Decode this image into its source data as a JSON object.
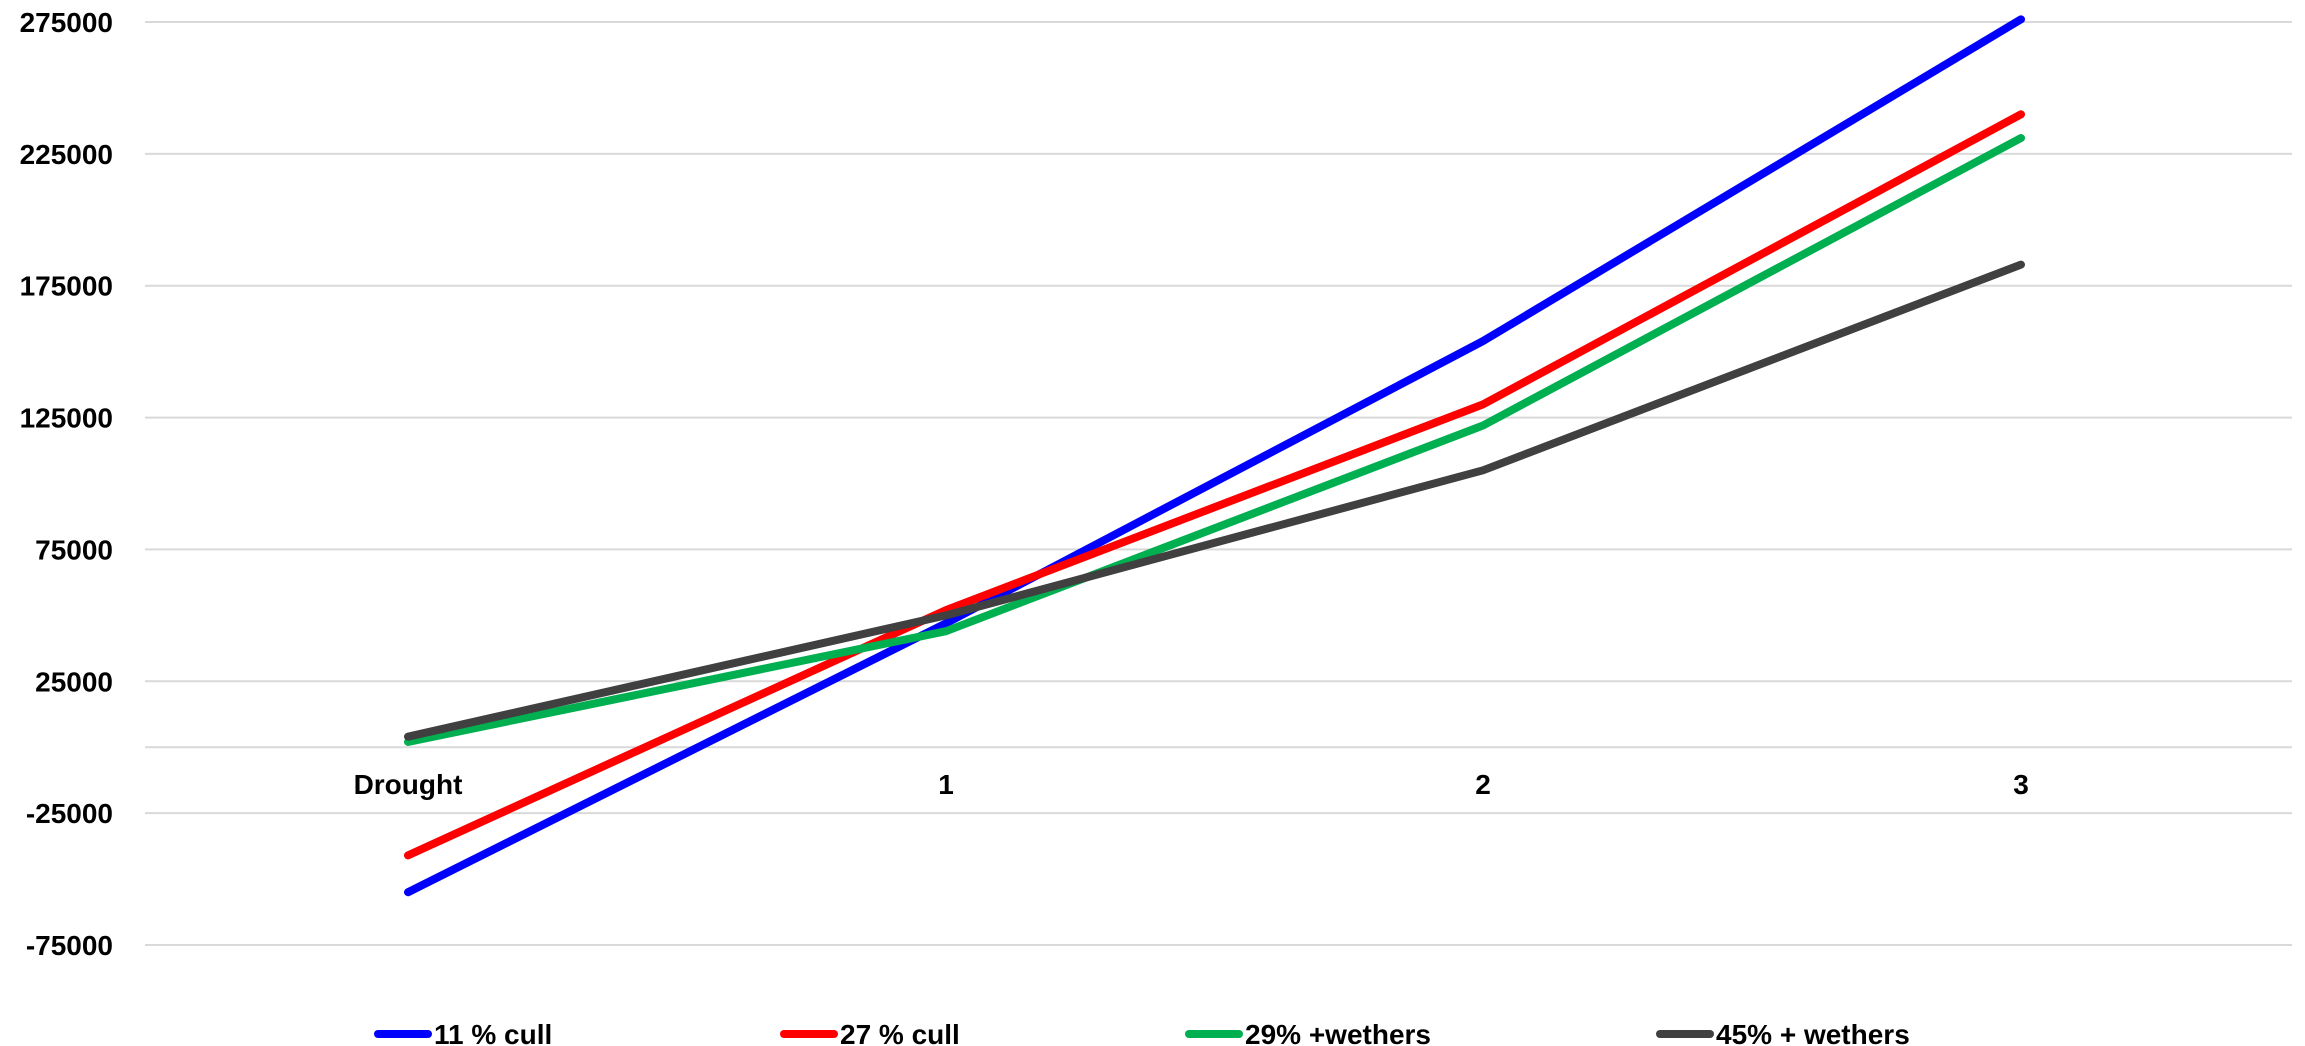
{
  "chart_data": {
    "type": "line",
    "title": "",
    "xlabel": "",
    "ylabel": "",
    "categories": [
      "Drought",
      "1",
      "2",
      "3"
    ],
    "ylim": [
      -100000,
      280000
    ],
    "yticks": [
      275000,
      225000,
      175000,
      125000,
      75000,
      25000,
      -25000,
      -75000
    ],
    "grid": true,
    "legend_position": "bottom",
    "series": [
      {
        "name": "11 % cull",
        "color": "#0000ff",
        "values": [
          -55000,
          47000,
          154000,
          276000
        ]
      },
      {
        "name": "27 % cull",
        "color": "#ff0000",
        "values": [
          -41000,
          52000,
          130000,
          240000
        ]
      },
      {
        "name": "29% +wethers",
        "color": "#00b050",
        "values": [
          2000,
          44000,
          122000,
          231000
        ]
      },
      {
        "name": "45% + wethers",
        "color": "#404040",
        "values": [
          4000,
          50000,
          105000,
          183000
        ]
      }
    ]
  }
}
